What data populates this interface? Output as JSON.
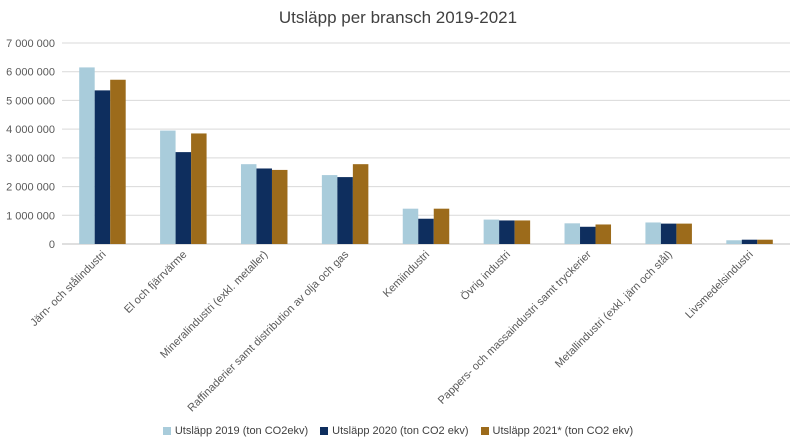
{
  "chart_data": {
    "type": "bar",
    "title": "Utsläpp per bransch 2019-2021",
    "categories": [
      "Järn- och stålindustri",
      "El och fjärrvärme",
      "Mineralindustri (exkl. metaller)",
      "Raffinaderier samt distribution av olja och gas",
      "Kemiindustri",
      "Övrig industri",
      "Pappers- och massaindustri samt tryckerier",
      "Metallindustri (exkl. järn och stål)",
      "Livsmedelsindustri"
    ],
    "series": [
      {
        "name": "Utsläpp 2019 (ton CO2ekv)",
        "color": "#A9CCDB",
        "values": [
          6150000,
          3950000,
          2780000,
          2400000,
          1230000,
          850000,
          720000,
          750000,
          130000
        ]
      },
      {
        "name": "Utsläpp 2020 (ton CO2 ekv)",
        "color": "#0E2E5E",
        "values": [
          5350000,
          3200000,
          2630000,
          2330000,
          880000,
          820000,
          600000,
          710000,
          150000
        ]
      },
      {
        "name": "Utsläpp 2021* (ton CO2 ekv)",
        "color": "#9C6B1B",
        "values": [
          5720000,
          3850000,
          2580000,
          2780000,
          1230000,
          820000,
          680000,
          710000,
          150000
        ]
      }
    ],
    "ylim": [
      0,
      7000000
    ],
    "yticks": [
      0,
      1000000,
      2000000,
      3000000,
      4000000,
      5000000,
      6000000,
      7000000
    ],
    "ytick_labels": [
      "0",
      "1 000 000",
      "2 000 000",
      "3 000 000",
      "4 000 000",
      "5 000 000",
      "6 000 000",
      "7 000 000"
    ],
    "grid": true,
    "legend_position": "bottom"
  }
}
